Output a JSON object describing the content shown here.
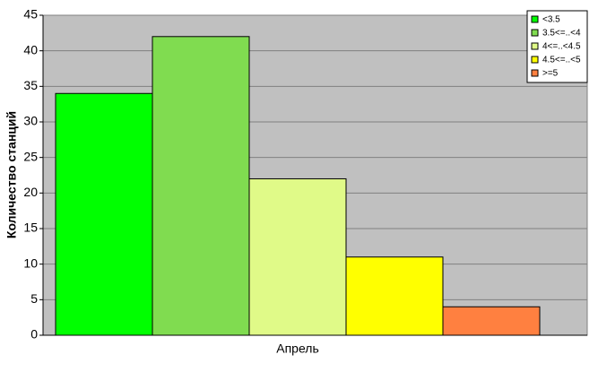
{
  "chart_data": {
    "type": "bar",
    "y_label": "Количество станций",
    "categories": [
      "Апрель"
    ],
    "series": [
      {
        "name": "<3.5",
        "color": "#00ff00",
        "values": [
          34
        ]
      },
      {
        "name": "3.5<=..<4",
        "color": "#80dc50",
        "values": [
          42
        ]
      },
      {
        "name": "4<=..<4.5",
        "color": "#e0fa88",
        "values": [
          22
        ]
      },
      {
        "name": "4.5<=..<5",
        "color": "#ffff00",
        "values": [
          11
        ]
      },
      {
        "name": ">=5",
        "color": "#ff8040",
        "values": [
          4
        ]
      }
    ],
    "ylim": [
      0,
      45
    ],
    "yticks": [
      0,
      5,
      10,
      15,
      20,
      25,
      30,
      35,
      40,
      45
    ],
    "grid": true,
    "legend": "top-right",
    "background": "#c0c0c0"
  }
}
